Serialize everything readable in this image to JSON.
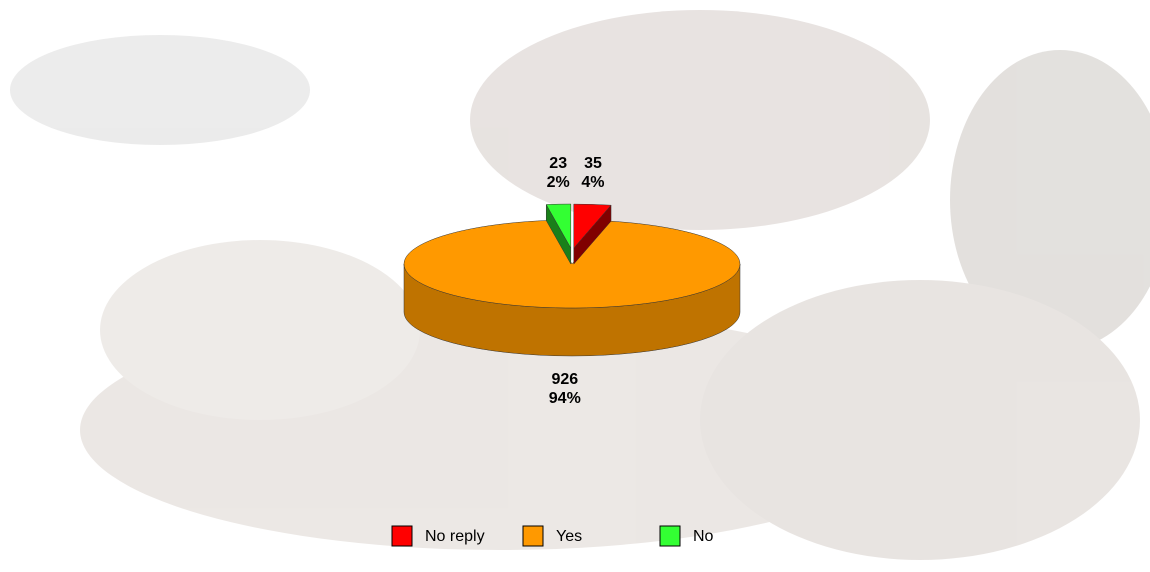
{
  "chart_data": {
    "type": "pie",
    "categories": [
      "No reply",
      "Yes",
      "No"
    ],
    "values": [
      35,
      926,
      23
    ],
    "percent_labels": [
      "4%",
      "94%",
      "2%"
    ],
    "colors": [
      "#ff0000",
      "#ff9900",
      "#33ff33"
    ],
    "exploded": [
      true,
      false,
      true
    ]
  }
}
